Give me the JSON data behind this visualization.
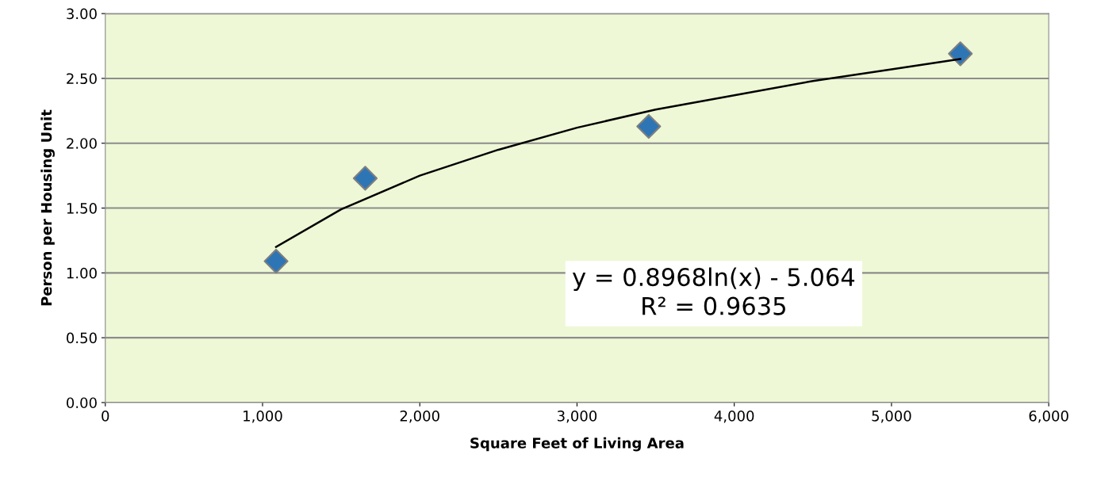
{
  "chart_data": {
    "type": "scatter",
    "xlabel": "Square Feet of Living Area",
    "ylabel": "Person per Housing Unit",
    "series": [
      {
        "color": "#2e75b6",
        "marker": "diamond",
        "x": [
          1086,
          1653,
          3456,
          5438
        ],
        "values": [
          1.09,
          1.73,
          2.13,
          2.69
        ]
      },
      {
        "type": "line",
        "color": "#000000",
        "line_style": "solid",
        "x": [
          1086,
          1500,
          2000,
          2500,
          3000,
          3500,
          4000,
          4500,
          5000,
          5438
        ],
        "values": [
          1.2,
          1.49,
          1.75,
          1.95,
          2.12,
          2.26,
          2.37,
          2.48,
          2.57,
          2.65
        ]
      }
    ],
    "annotations": [
      "y = 0.8968ln(x) - 5.064\nR² = 0.9635"
    ],
    "xlim": [
      0,
      6000
    ],
    "xticks": [
      0,
      {
        "value": 1000,
        "label": "1,000"
      },
      {
        "value": 2000,
        "label": "2,000"
      },
      {
        "value": 3000,
        "label": "3,000"
      },
      {
        "value": 4000,
        "label": "4,000"
      },
      {
        "value": 5000,
        "label": "5,000"
      },
      {
        "value": 6000,
        "label": "6,000"
      }
    ],
    "ylim": [
      0,
      3
    ],
    "yticks": [
      {
        "value": 0,
        "label": "0.00"
      },
      {
        "value": 0.5,
        "label": "0.50"
      },
      {
        "value": 1,
        "label": "1.00"
      },
      {
        "value": 1.5,
        "label": "1.50"
      },
      {
        "value": 2,
        "label": "2.00"
      },
      {
        "value": 2.5,
        "label": "2.50"
      },
      {
        "value": 3,
        "label": "3.00"
      }
    ],
    "grid": "y",
    "legend": false
  }
}
